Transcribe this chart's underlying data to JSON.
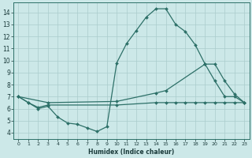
{
  "xlabel": "Humidex (Indice chaleur)",
  "bg_color": "#cce8e8",
  "grid_color": "#aacccc",
  "line_color": "#2d7068",
  "xlim": [
    -0.5,
    23.5
  ],
  "ylim": [
    3.5,
    14.8
  ],
  "xticks": [
    0,
    1,
    2,
    3,
    4,
    5,
    6,
    7,
    8,
    9,
    10,
    11,
    12,
    13,
    14,
    15,
    16,
    17,
    18,
    19,
    20,
    21,
    22,
    23
  ],
  "yticks": [
    4,
    5,
    6,
    7,
    8,
    9,
    10,
    11,
    12,
    13,
    14
  ],
  "line1_x": [
    0,
    1,
    2,
    3,
    4,
    5,
    6,
    7,
    8,
    9,
    10,
    11,
    12,
    13,
    14,
    15,
    16,
    17,
    18,
    19,
    20,
    21,
    22,
    23
  ],
  "line1_y": [
    7.0,
    6.5,
    6.0,
    6.2,
    5.3,
    4.8,
    4.7,
    4.4,
    4.1,
    4.5,
    9.8,
    11.4,
    12.5,
    13.6,
    14.3,
    14.3,
    13.0,
    12.4,
    11.3,
    9.7,
    8.3,
    7.0,
    7.0,
    6.5
  ],
  "line2_x": [
    0,
    3,
    10,
    14,
    15,
    19,
    20,
    21,
    22,
    23
  ],
  "line2_y": [
    7.0,
    6.5,
    6.6,
    7.3,
    7.5,
    9.7,
    9.7,
    8.3,
    7.2,
    6.5
  ],
  "line3_x": [
    0,
    1,
    2,
    3,
    10,
    14,
    15,
    16,
    17,
    18,
    19,
    20,
    21,
    22,
    23
  ],
  "line3_y": [
    7.0,
    6.5,
    6.1,
    6.3,
    6.3,
    6.5,
    6.5,
    6.5,
    6.5,
    6.5,
    6.5,
    6.5,
    6.5,
    6.5,
    6.5
  ]
}
